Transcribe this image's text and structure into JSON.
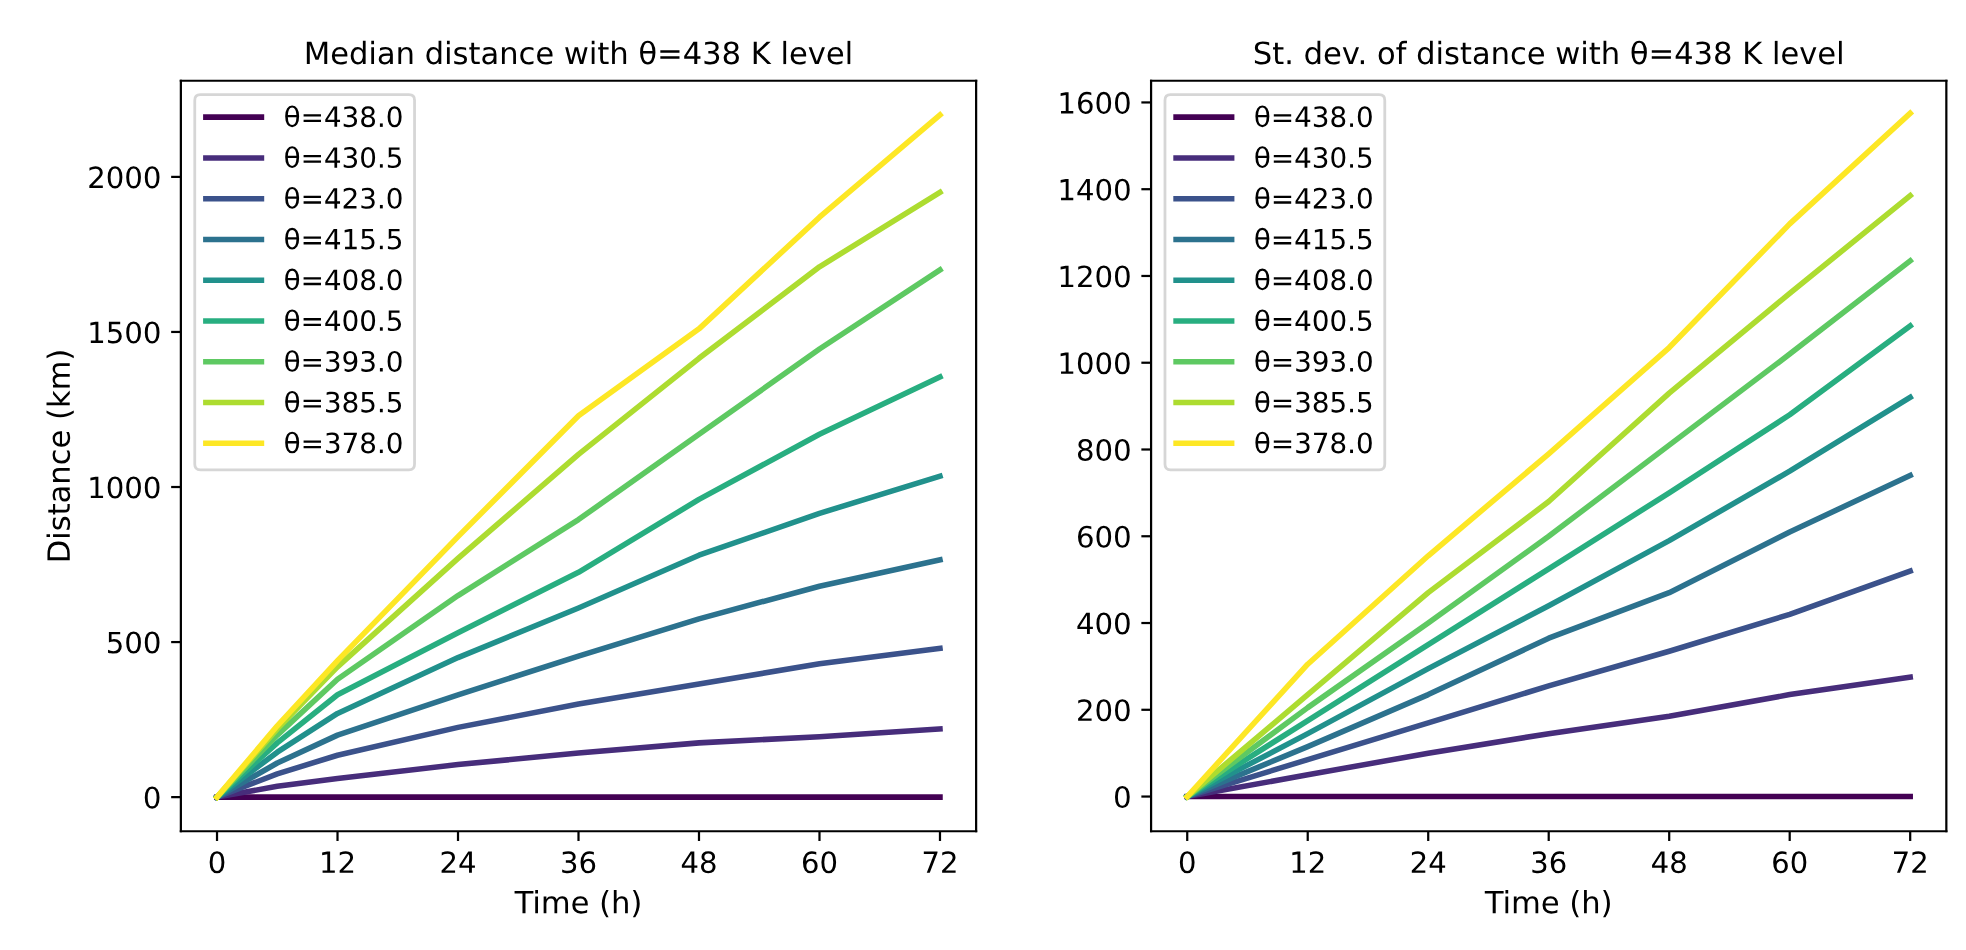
{
  "chart_data": [
    {
      "type": "line",
      "title": "Median distance with θ=438 K level",
      "xlabel": "Time (h)",
      "ylabel": "Distance (km)",
      "x": [
        0,
        6,
        12,
        24,
        36,
        48,
        60,
        72
      ],
      "xlim": [
        -3.6,
        75.6
      ],
      "xticks": [
        0,
        12,
        24,
        36,
        48,
        60,
        72
      ],
      "ylim": [
        -110,
        2310
      ],
      "yticks": [
        0,
        500,
        1000,
        1500,
        2000
      ],
      "legend": "top left",
      "grid": false,
      "series": [
        {
          "name": "θ=438.0",
          "color": "#440154",
          "values": [
            0,
            0,
            0,
            0,
            0,
            0,
            0,
            0
          ]
        },
        {
          "name": "θ=430.5",
          "color": "#472d7b",
          "values": [
            0,
            35,
            60,
            105,
            142,
            175,
            195,
            220
          ]
        },
        {
          "name": "θ=423.0",
          "color": "#3b528b",
          "values": [
            0,
            75,
            135,
            225,
            300,
            365,
            430,
            480
          ]
        },
        {
          "name": "θ=415.5",
          "color": "#2c728e",
          "values": [
            0,
            110,
            200,
            330,
            455,
            575,
            680,
            765
          ]
        },
        {
          "name": "θ=408.0",
          "color": "#21918c",
          "values": [
            0,
            145,
            270,
            450,
            610,
            780,
            915,
            1035
          ]
        },
        {
          "name": "θ=400.5",
          "color": "#28ae80",
          "values": [
            0,
            175,
            330,
            530,
            725,
            960,
            1170,
            1355
          ]
        },
        {
          "name": "θ=393.0",
          "color": "#5ec962",
          "values": [
            0,
            200,
            380,
            650,
            895,
            1170,
            1445,
            1700
          ]
        },
        {
          "name": "θ=385.5",
          "color": "#addc30",
          "values": [
            0,
            220,
            420,
            770,
            1105,
            1415,
            1710,
            1950
          ]
        },
        {
          "name": "θ=378.0",
          "color": "#fde725",
          "values": [
            0,
            230,
            440,
            840,
            1230,
            1510,
            1870,
            2200
          ]
        }
      ]
    },
    {
      "type": "line",
      "title": "St. dev. of distance with θ=438 K level",
      "xlabel": "Time (h)",
      "x": [
        0,
        12,
        24,
        36,
        48,
        60,
        72
      ],
      "xlim": [
        -3.6,
        75.6
      ],
      "xticks": [
        0,
        12,
        24,
        36,
        48,
        60,
        72
      ],
      "ylim": [
        -80,
        1650
      ],
      "yticks": [
        0,
        200,
        400,
        600,
        800,
        1000,
        1200,
        1400,
        1600
      ],
      "legend": "top left",
      "grid": false,
      "series": [
        {
          "name": "θ=438.0",
          "color": "#440154",
          "values": [
            0,
            0,
            0,
            0,
            0,
            0,
            0
          ]
        },
        {
          "name": "θ=430.5",
          "color": "#472d7b",
          "values": [
            0,
            50,
            100,
            145,
            185,
            235,
            275
          ]
        },
        {
          "name": "θ=423.0",
          "color": "#3b528b",
          "values": [
            0,
            85,
            170,
            255,
            335,
            420,
            520
          ]
        },
        {
          "name": "θ=415.5",
          "color": "#2c728e",
          "values": [
            0,
            115,
            235,
            365,
            470,
            610,
            740
          ]
        },
        {
          "name": "θ=408.0",
          "color": "#21918c",
          "values": [
            0,
            145,
            295,
            440,
            590,
            750,
            920
          ]
        },
        {
          "name": "θ=400.5",
          "color": "#28ae80",
          "values": [
            0,
            175,
            350,
            525,
            700,
            880,
            1085
          ]
        },
        {
          "name": "θ=393.0",
          "color": "#5ec962",
          "values": [
            0,
            205,
            400,
            600,
            810,
            1020,
            1235
          ]
        },
        {
          "name": "θ=385.5",
          "color": "#addc30",
          "values": [
            0,
            235,
            470,
            680,
            930,
            1160,
            1385
          ]
        },
        {
          "name": "θ=378.0",
          "color": "#fde725",
          "values": [
            0,
            305,
            555,
            790,
            1035,
            1320,
            1575
          ]
        }
      ]
    }
  ]
}
